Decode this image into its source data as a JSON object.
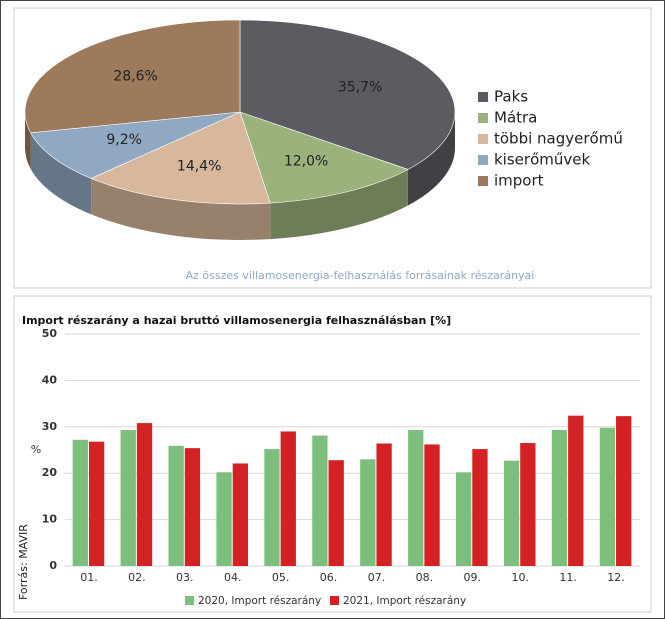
{
  "chart_data": [
    {
      "type": "pie",
      "categories": [
        "Paks",
        "Mátra",
        "többi nagyerőmű",
        "kiserőművek",
        "import"
      ],
      "values": [
        35.7,
        12.0,
        14.4,
        9.2,
        28.6
      ],
      "value_labels": [
        "35,7%",
        "12,0%",
        "14,4%",
        "9,2%",
        "28,6%"
      ],
      "colors": [
        "#5b5b62",
        "#9cb27c",
        "#d8b89c",
        "#90a9c2",
        "#9c7a5b"
      ],
      "caption": "Az összes villamosenergia-felhasználás forrásainak részarányai"
    },
    {
      "type": "bar",
      "title": "Import részarány a hazai bruttó villamosenergia felhasználásban [%]",
      "ylabel": "%",
      "note": "Forrás: MAVIR",
      "categories": [
        "01.",
        "02.",
        "03.",
        "04.",
        "05.",
        "06.",
        "07.",
        "08.",
        "09.",
        "10.",
        "11.",
        "12."
      ],
      "series": [
        {
          "name": "2020, Import részarány",
          "color": "#7cbf7c",
          "values": [
            27.2,
            29.3,
            25.9,
            20.2,
            25.2,
            28.1,
            23.0,
            29.3,
            20.2,
            22.7,
            29.3,
            29.8
          ]
        },
        {
          "name": "2021, Import részarány",
          "color": "#d42222",
          "values": [
            26.8,
            30.8,
            25.4,
            22.1,
            29.0,
            22.8,
            26.4,
            26.2,
            25.2,
            26.5,
            32.4,
            32.3
          ]
        }
      ],
      "ylim": [
        0,
        50
      ],
      "yticks": [
        0,
        10,
        20,
        30,
        40,
        50
      ],
      "grid": true
    }
  ]
}
